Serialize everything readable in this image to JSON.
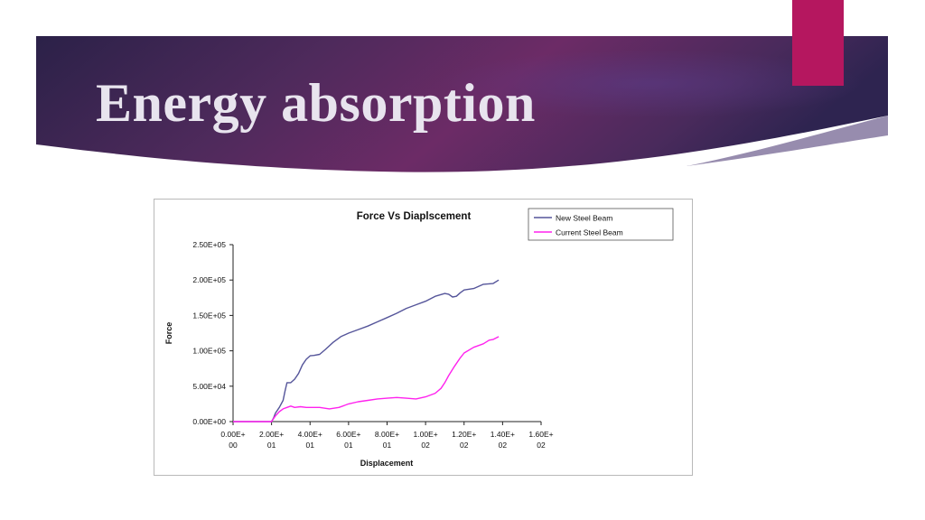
{
  "slide": {
    "title": "Energy absorption",
    "colors": {
      "banner_dark": "#2a1f48",
      "banner_mid": "#6a2a66",
      "accent_tab": "#b5175f"
    }
  },
  "chart_data": {
    "type": "line",
    "title": "Force Vs Diaplscement",
    "xlabel": "Displacement",
    "ylabel": "Force",
    "xlim": [
      0,
      160
    ],
    "ylim": [
      0,
      250000
    ],
    "grid": false,
    "legend_position": "top-right",
    "x_tick_labels": [
      [
        "0.00E+",
        "00"
      ],
      [
        "2.00E+",
        "01"
      ],
      [
        "4.00E+",
        "01"
      ],
      [
        "6.00E+",
        "01"
      ],
      [
        "8.00E+",
        "01"
      ],
      [
        "1.00E+",
        "02"
      ],
      [
        "1.20E+",
        "02"
      ],
      [
        "1.40E+",
        "02"
      ],
      [
        "1.60E+",
        "02"
      ]
    ],
    "y_tick_labels": [
      "0.00E+00",
      "5.00E+04",
      "1.00E+05",
      "1.50E+05",
      "2.00E+05",
      "2.50E+05"
    ],
    "series": [
      {
        "name": "New Steel Beam",
        "color": "#55559a",
        "x": [
          0,
          20,
          21,
          22,
          24,
          26,
          27,
          28,
          30,
          32,
          34,
          36,
          38,
          40,
          42,
          45,
          48,
          52,
          56,
          60,
          65,
          70,
          75,
          80,
          85,
          90,
          95,
          100,
          105,
          110,
          112,
          114,
          116,
          118,
          120,
          125,
          130,
          135,
          138
        ],
        "y": [
          0,
          0,
          5000,
          12000,
          20000,
          30000,
          43000,
          55000,
          55000,
          60000,
          68000,
          80000,
          88000,
          93000,
          93500,
          95000,
          102000,
          112000,
          120000,
          125000,
          130000,
          135000,
          141000,
          147000,
          153000,
          160000,
          165000,
          170000,
          177000,
          181000,
          180000,
          176000,
          177000,
          182000,
          186000,
          188000,
          194000,
          195000,
          200000
        ]
      },
      {
        "name": "Current Steel Beam",
        "color": "#ff22ee",
        "x": [
          0,
          20,
          22,
          24,
          26,
          28,
          30,
          32,
          35,
          38,
          40,
          45,
          50,
          55,
          60,
          65,
          70,
          75,
          80,
          85,
          90,
          95,
          100,
          105,
          108,
          110,
          112,
          115,
          118,
          120,
          125,
          130,
          133,
          135,
          138
        ],
        "y": [
          0,
          0,
          8000,
          14000,
          18000,
          20000,
          22000,
          20000,
          21000,
          20000,
          20000,
          20000,
          18000,
          20000,
          25000,
          28000,
          30000,
          32000,
          33000,
          34000,
          33000,
          32000,
          35000,
          40000,
          47000,
          55000,
          65000,
          78000,
          90000,
          97000,
          105000,
          110000,
          115000,
          116000,
          120000
        ]
      }
    ]
  }
}
